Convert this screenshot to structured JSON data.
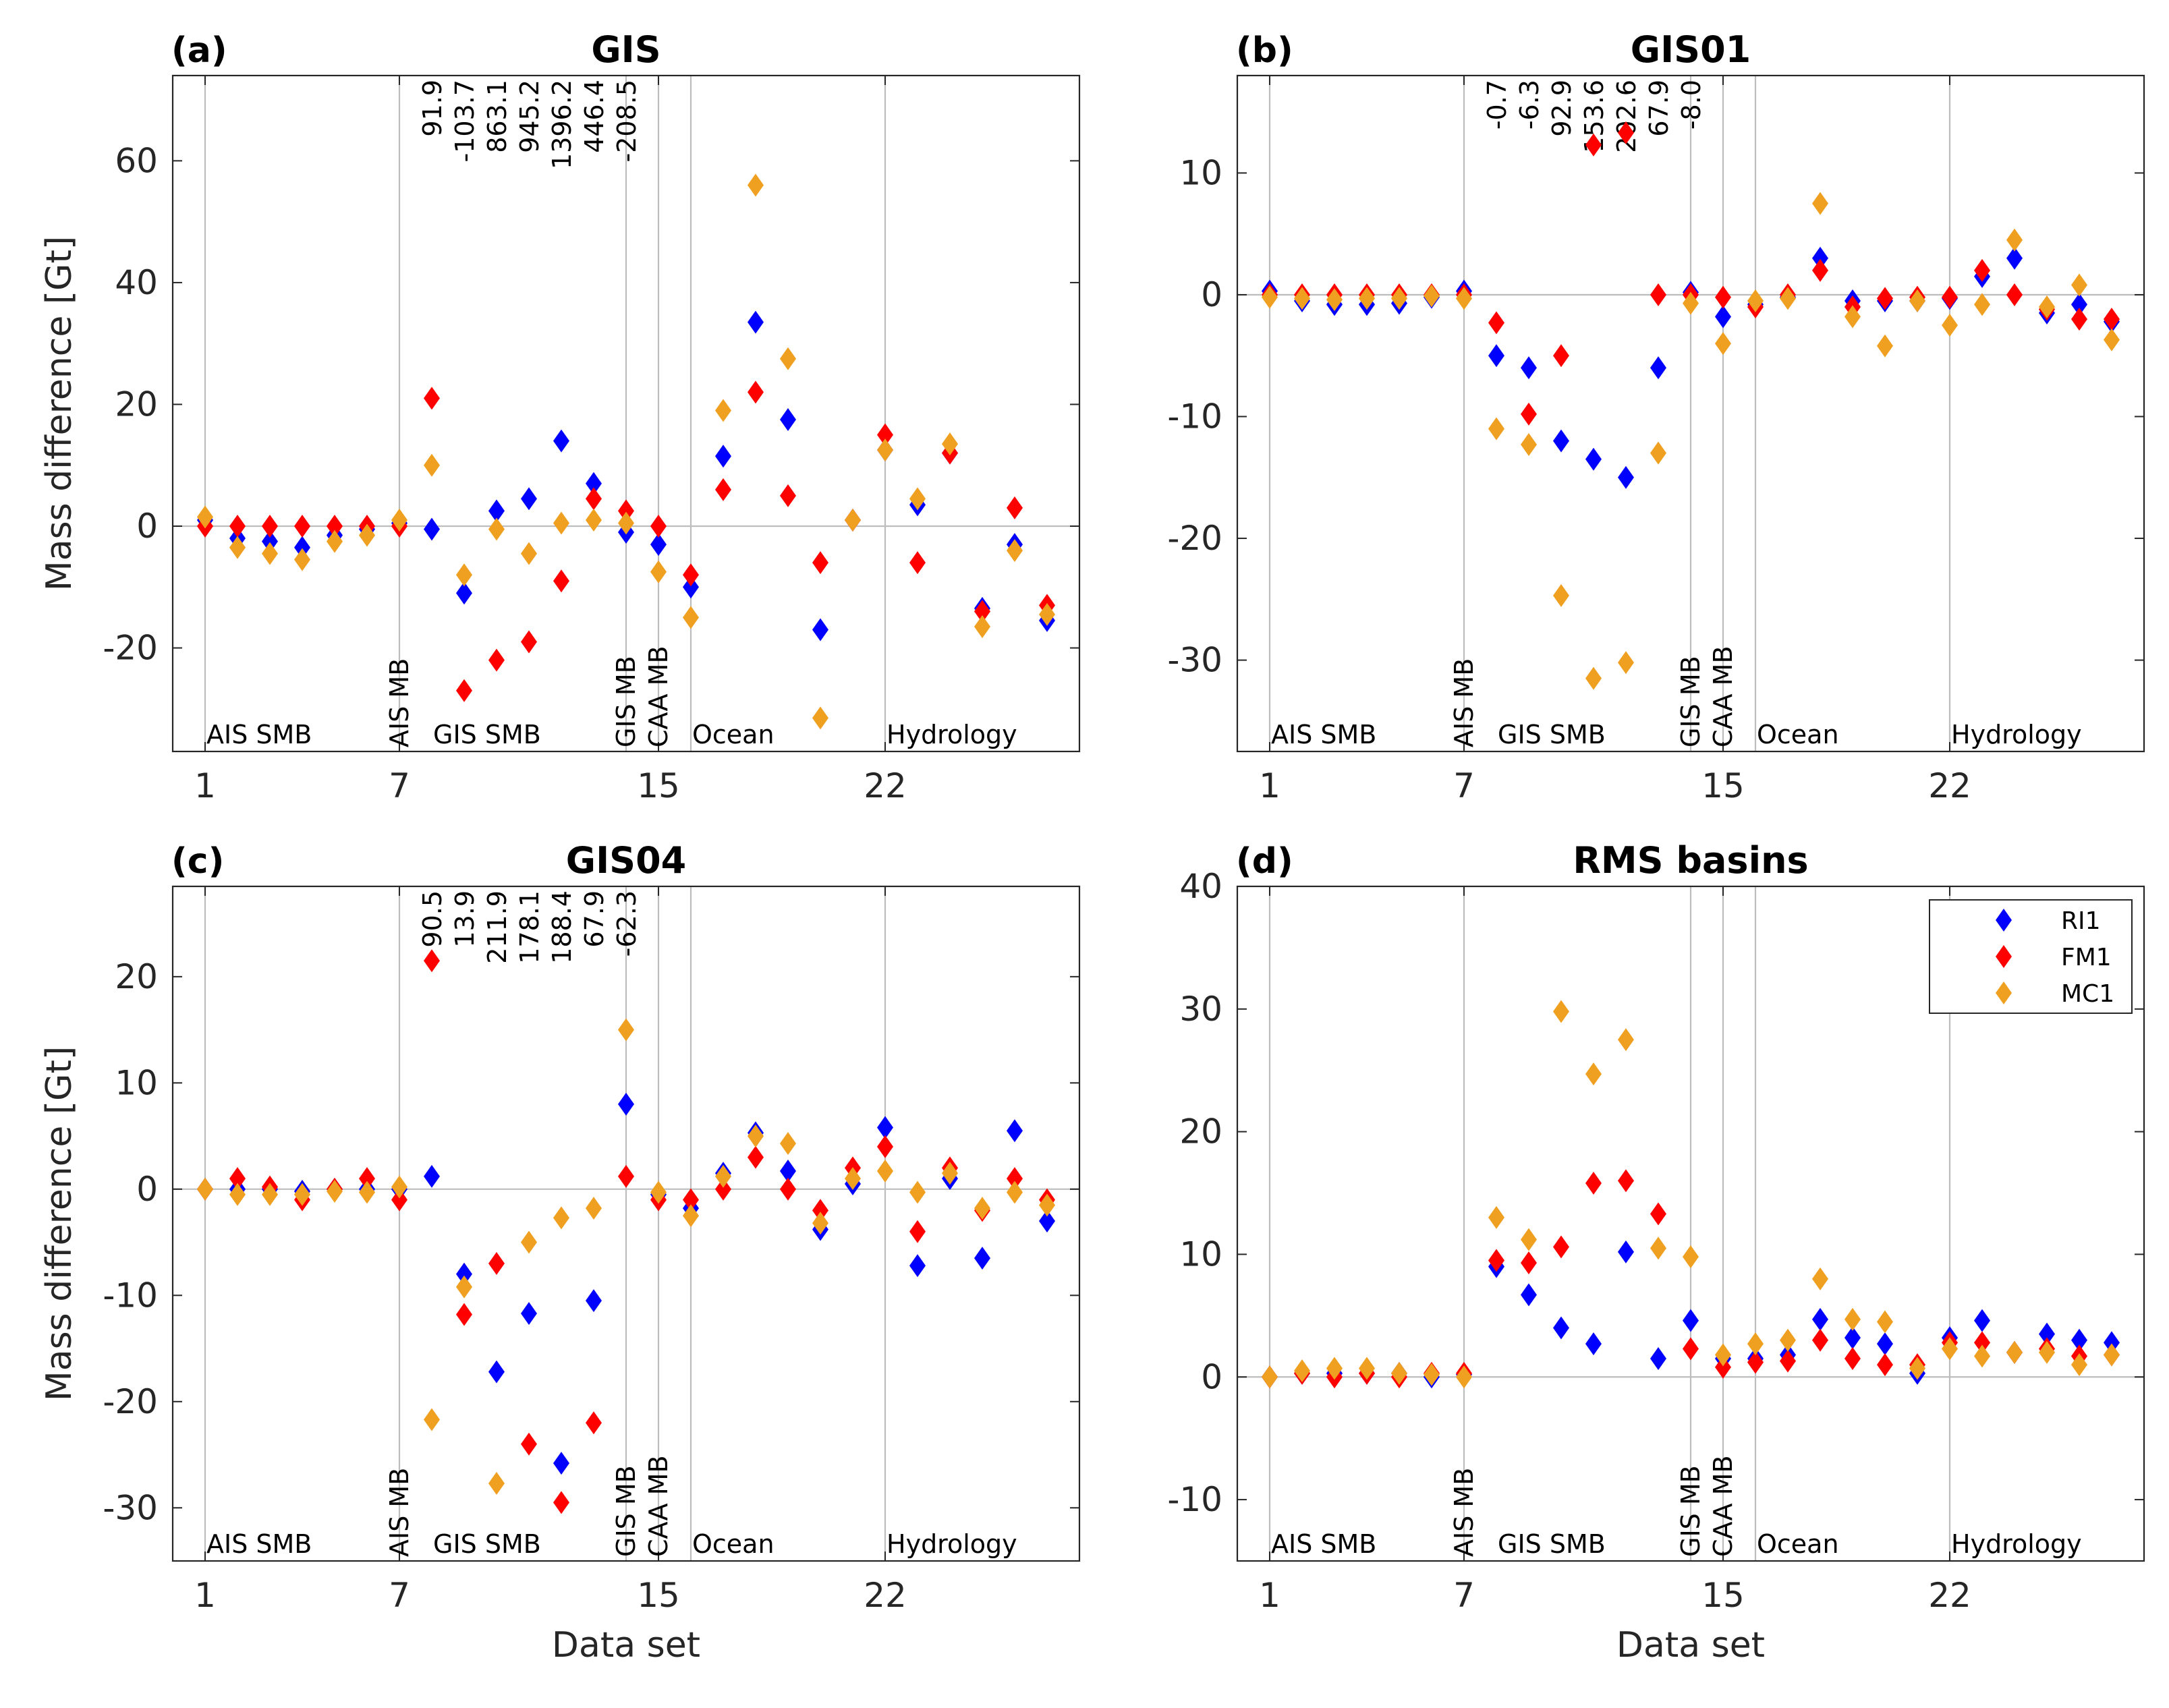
{
  "figure": {
    "series_colors": {
      "RI1": "#0000ff",
      "FM1": "#ff0000",
      "MC1": "#f0a020"
    },
    "legend_labels": [
      "RI1",
      "FM1",
      "MC1"
    ],
    "x_label": "Data set",
    "y_label": "Mass difference [Gt]"
  },
  "chart_data": [
    {
      "type": "scatter",
      "panel_label": "(a)",
      "title": "GIS",
      "xlabel": "",
      "ylabel": "Mass difference [Gt]",
      "xlim": [
        0,
        28
      ],
      "ylim": [
        -37,
        74
      ],
      "yticks": [
        -20,
        0,
        20,
        40,
        60
      ],
      "xticks": [
        1,
        7,
        15,
        22
      ],
      "group_lines": [
        1,
        7,
        14,
        15,
        16,
        22
      ],
      "group_labels": [
        {
          "text": "AIS SMB",
          "x": 1,
          "rot": false
        },
        {
          "text": "AIS MB",
          "x": 7,
          "rot": true
        },
        {
          "text": "GIS SMB",
          "x": 8,
          "rot": false
        },
        {
          "text": "GIS MB",
          "x": 14,
          "rot": true
        },
        {
          "text": "CAA MB",
          "x": 15,
          "rot": true
        },
        {
          "text": "Ocean",
          "x": 16,
          "rot": false
        },
        {
          "text": "Hydrology",
          "x": 22,
          "rot": false
        }
      ],
      "annotations": [
        {
          "x": 8,
          "text": "91.9"
        },
        {
          "x": 9,
          "text": "-103.7"
        },
        {
          "x": 10,
          "text": "863.1"
        },
        {
          "x": 11,
          "text": "945.2"
        },
        {
          "x": 12,
          "text": "1396.2"
        },
        {
          "x": 13,
          "text": "446.4"
        },
        {
          "x": 14,
          "text": "-208.5"
        }
      ],
      "x": [
        1,
        2,
        3,
        4,
        5,
        6,
        7,
        8,
        9,
        10,
        11,
        12,
        13,
        14,
        15,
        16,
        17,
        18,
        19,
        20,
        21,
        22,
        23,
        24,
        25,
        26,
        27
      ],
      "series": [
        {
          "name": "RI1",
          "values": [
            1.0,
            -2.0,
            -2.5,
            -3.5,
            -1.5,
            -0.5,
            0.5,
            -0.5,
            -11.0,
            2.5,
            4.5,
            14.0,
            7.0,
            -1.0,
            -3.0,
            -10.0,
            11.5,
            33.5,
            17.5,
            -17.0,
            1.0,
            12.5,
            3.5,
            12.0,
            -13.5,
            -3.0,
            -15.5
          ]
        },
        {
          "name": "FM1",
          "values": [
            0.0,
            0.0,
            0.0,
            0.0,
            0.0,
            0.0,
            0.0,
            21.0,
            -27.0,
            -22.0,
            -19.0,
            -9.0,
            4.5,
            2.5,
            0.0,
            -8.0,
            6.0,
            22.0,
            5.0,
            -6.0,
            1.0,
            15.0,
            -6.0,
            12.0,
            -14.0,
            3.0,
            -13.0
          ]
        },
        {
          "name": "MC1",
          "values": [
            1.5,
            -3.5,
            -4.5,
            -5.5,
            -2.5,
            -1.5,
            1.0,
            10.0,
            -8.0,
            -0.5,
            -4.5,
            0.5,
            1.0,
            0.5,
            -7.5,
            -15.0,
            19.0,
            56.0,
            27.5,
            -31.5,
            1.0,
            12.5,
            4.5,
            13.5,
            -16.5,
            -4.0,
            -14.5
          ]
        }
      ]
    },
    {
      "type": "scatter",
      "panel_label": "(b)",
      "title": "GIS01",
      "xlabel": "",
      "ylabel": "",
      "xlim": [
        0,
        28
      ],
      "ylim": [
        -37.5,
        18
      ],
      "yticks": [
        -30,
        -20,
        -10,
        0,
        10
      ],
      "xticks": [
        1,
        7,
        15,
        22
      ],
      "group_lines": [
        1,
        7,
        14,
        15,
        16,
        22
      ],
      "group_labels": [
        {
          "text": "AIS SMB",
          "x": 1,
          "rot": false
        },
        {
          "text": "AIS MB",
          "x": 7,
          "rot": true
        },
        {
          "text": "GIS SMB",
          "x": 8,
          "rot": false
        },
        {
          "text": "GIS MB",
          "x": 14,
          "rot": true
        },
        {
          "text": "CAA MB",
          "x": 15,
          "rot": true
        },
        {
          "text": "Ocean",
          "x": 16,
          "rot": false
        },
        {
          "text": "Hydrology",
          "x": 22,
          "rot": false
        }
      ],
      "annotations": [
        {
          "x": 8,
          "text": "-0.7"
        },
        {
          "x": 9,
          "text": "-6.3"
        },
        {
          "x": 10,
          "text": "92.9"
        },
        {
          "x": 11,
          "text": "153.6"
        },
        {
          "x": 12,
          "text": "202.6"
        },
        {
          "x": 13,
          "text": "67.9"
        },
        {
          "x": 14,
          "text": "-8.0"
        }
      ],
      "x": [
        1,
        2,
        3,
        4,
        5,
        6,
        7,
        8,
        9,
        10,
        11,
        12,
        13,
        14,
        15,
        16,
        17,
        18,
        19,
        20,
        21,
        22,
        23,
        24,
        25,
        26,
        27
      ],
      "series": [
        {
          "name": "RI1",
          "values": [
            0.3,
            -0.5,
            -0.8,
            -0.8,
            -0.7,
            -0.2,
            0.3,
            -5.0,
            -6.0,
            -12.0,
            -13.5,
            -15.0,
            -6.0,
            0.2,
            -1.8,
            -0.8,
            -0.2,
            3.0,
            -0.5,
            -0.5,
            -0.5,
            -0.3,
            1.5,
            3.0,
            -1.5,
            -0.8,
            -2.2
          ]
        },
        {
          "name": "FM1",
          "values": [
            0.0,
            0.0,
            0.0,
            0.0,
            0.0,
            0.0,
            0.0,
            -2.3,
            -9.8,
            -5.0,
            12.3,
            13.3,
            0.0,
            0.0,
            -0.2,
            -1.0,
            0.0,
            2.0,
            -1.0,
            -0.3,
            -0.2,
            -0.2,
            2.0,
            0.0,
            -1.2,
            -2.0,
            -2.0
          ]
        },
        {
          "name": "MC1",
          "values": [
            -0.2,
            -0.3,
            -0.4,
            -0.3,
            -0.3,
            -0.1,
            -0.3,
            -11.0,
            -12.3,
            -24.7,
            -31.5,
            -30.2,
            -13.0,
            -0.7,
            -4.0,
            -0.5,
            -0.3,
            7.5,
            -1.8,
            -4.2,
            -0.5,
            -2.5,
            -0.8,
            4.5,
            -1.0,
            0.8,
            -3.7
          ]
        }
      ]
    },
    {
      "type": "scatter",
      "panel_label": "(c)",
      "title": "GIS04",
      "xlabel": "Data set",
      "ylabel": "Mass difference [Gt]",
      "xlim": [
        0,
        28
      ],
      "ylim": [
        -35,
        28.5
      ],
      "yticks": [
        -30,
        -20,
        -10,
        0,
        10,
        20
      ],
      "xticks": [
        1,
        7,
        15,
        22
      ],
      "group_lines": [
        1,
        7,
        14,
        15,
        16,
        22
      ],
      "group_labels": [
        {
          "text": "AIS SMB",
          "x": 1,
          "rot": false
        },
        {
          "text": "AIS MB",
          "x": 7,
          "rot": true
        },
        {
          "text": "GIS SMB",
          "x": 8,
          "rot": false
        },
        {
          "text": "GIS MB",
          "x": 14,
          "rot": true
        },
        {
          "text": "CAA MB",
          "x": 15,
          "rot": true
        },
        {
          "text": "Ocean",
          "x": 16,
          "rot": false
        },
        {
          "text": "Hydrology",
          "x": 22,
          "rot": false
        }
      ],
      "annotations": [
        {
          "x": 8,
          "text": "90.5"
        },
        {
          "x": 9,
          "text": "13.9"
        },
        {
          "x": 10,
          "text": "211.9"
        },
        {
          "x": 11,
          "text": "178.1"
        },
        {
          "x": 12,
          "text": "188.4"
        },
        {
          "x": 13,
          "text": "67.9"
        },
        {
          "x": 14,
          "text": "-62.3"
        }
      ],
      "x": [
        1,
        2,
        3,
        4,
        5,
        6,
        7,
        8,
        9,
        10,
        11,
        12,
        13,
        14,
        15,
        16,
        17,
        18,
        19,
        20,
        21,
        22,
        23,
        24,
        25,
        26,
        27
      ],
      "series": [
        {
          "name": "RI1",
          "values": [
            0.0,
            0.0,
            0.0,
            -0.2,
            0.0,
            0.0,
            0.0,
            1.2,
            -8.0,
            -17.2,
            -11.7,
            -25.8,
            -10.5,
            8.0,
            -0.5,
            -1.8,
            1.5,
            5.3,
            1.7,
            -3.8,
            0.5,
            5.8,
            -7.2,
            1.0,
            -6.5,
            5.5,
            -3.0
          ]
        },
        {
          "name": "FM1",
          "values": [
            0.0,
            1.0,
            0.2,
            -1.0,
            0.0,
            1.0,
            -1.0,
            21.5,
            -11.8,
            -7.0,
            -24.0,
            -29.5,
            -22.0,
            1.2,
            -1.0,
            -1.0,
            0.0,
            3.0,
            0.0,
            -2.0,
            2.0,
            4.0,
            -4.0,
            2.0,
            -2.0,
            1.0,
            -1.0
          ]
        },
        {
          "name": "MC1",
          "values": [
            0.0,
            -0.5,
            -0.5,
            -0.5,
            -0.2,
            -0.3,
            0.2,
            -21.7,
            -9.2,
            -27.7,
            -5.0,
            -2.7,
            -1.8,
            15.0,
            -0.3,
            -2.5,
            1.2,
            5.0,
            4.3,
            -3.2,
            1.0,
            1.7,
            -0.3,
            1.5,
            -1.8,
            -0.3,
            -1.5
          ]
        }
      ]
    },
    {
      "type": "scatter",
      "panel_label": "(d)",
      "title": "RMS basins",
      "xlabel": "Data set",
      "ylabel": "",
      "xlim": [
        0,
        28
      ],
      "ylim": [
        -15,
        40
      ],
      "yticks": [
        -10,
        0,
        10,
        20,
        30,
        40
      ],
      "xticks": [
        1,
        7,
        15,
        22
      ],
      "group_lines": [
        1,
        7,
        14,
        15,
        16,
        22
      ],
      "group_labels": [
        {
          "text": "AIS SMB",
          "x": 1,
          "rot": false
        },
        {
          "text": "AIS MB",
          "x": 7,
          "rot": true
        },
        {
          "text": "GIS SMB",
          "x": 8,
          "rot": false
        },
        {
          "text": "GIS MB",
          "x": 14,
          "rot": true
        },
        {
          "text": "CAA MB",
          "x": 15,
          "rot": true
        },
        {
          "text": "Ocean",
          "x": 16,
          "rot": false
        },
        {
          "text": "Hydrology",
          "x": 22,
          "rot": false
        }
      ],
      "annotations": [],
      "legend": "top-right",
      "x": [
        1,
        2,
        3,
        4,
        5,
        6,
        7,
        8,
        9,
        10,
        11,
        12,
        13,
        14,
        15,
        16,
        17,
        18,
        19,
        20,
        21,
        22,
        23,
        24,
        25,
        26,
        27
      ],
      "series": [
        {
          "name": "RI1",
          "values": [
            0.0,
            0.3,
            0.3,
            0.3,
            0.3,
            0.0,
            0.2,
            9.0,
            6.7,
            4.0,
            2.7,
            10.2,
            1.5,
            4.6,
            1.5,
            1.5,
            1.8,
            4.7,
            3.2,
            2.7,
            0.3,
            3.2,
            4.6,
            2.0,
            3.5,
            3.0,
            2.8
          ]
        },
        {
          "name": "FM1",
          "values": [
            0.0,
            0.3,
            0.0,
            0.3,
            0.0,
            0.3,
            0.3,
            9.5,
            9.3,
            10.6,
            15.8,
            16.0,
            13.3,
            2.3,
            0.8,
            1.2,
            1.3,
            3.0,
            1.5,
            1.0,
            1.0,
            2.8,
            2.8,
            2.0,
            2.3,
            1.7,
            1.8
          ]
        },
        {
          "name": "MC1",
          "values": [
            0.0,
            0.5,
            0.7,
            0.7,
            0.3,
            0.2,
            0.0,
            13.0,
            11.2,
            29.8,
            24.7,
            27.5,
            10.5,
            9.8,
            1.8,
            2.7,
            3.0,
            8.0,
            4.7,
            4.5,
            0.7,
            2.3,
            1.7,
            2.0,
            2.0,
            1.0,
            1.8
          ]
        }
      ]
    }
  ]
}
